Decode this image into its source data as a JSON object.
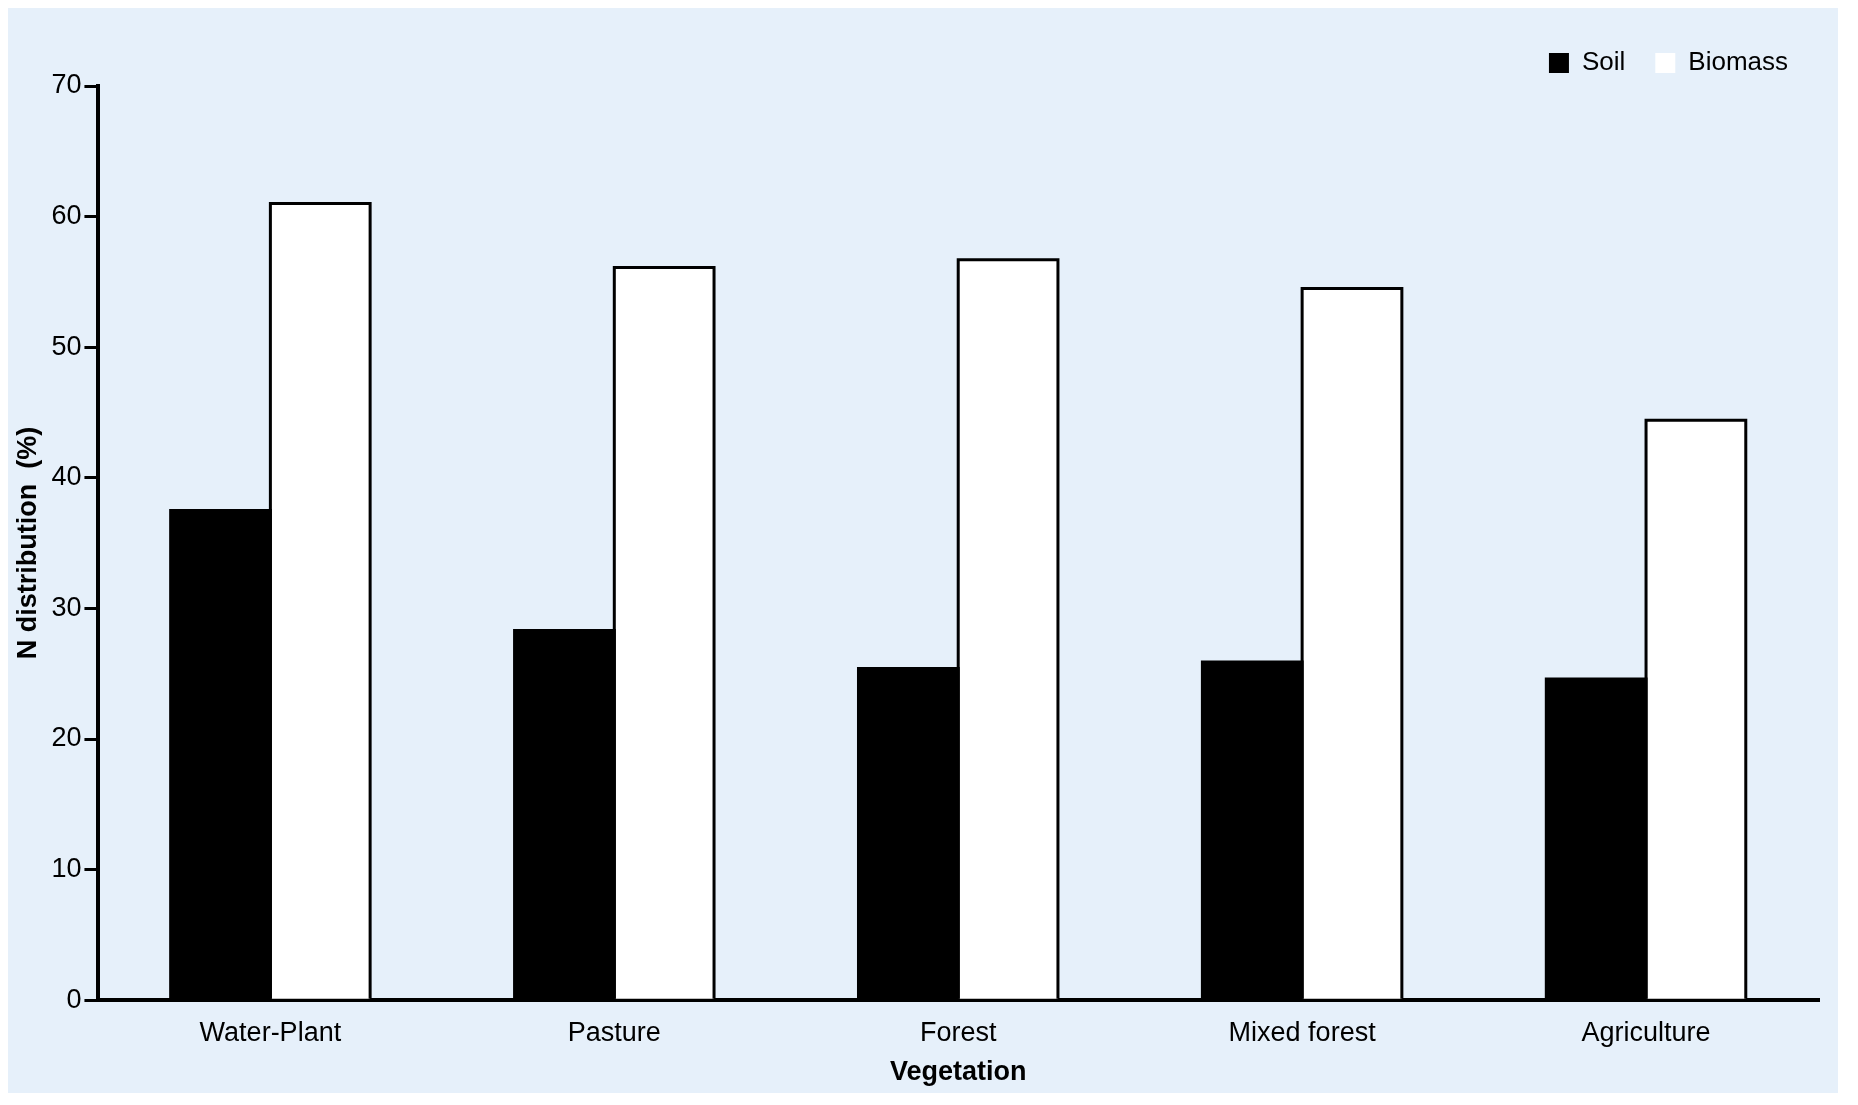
{
  "chart_data": {
    "type": "bar",
    "xlabel": "Vegetation",
    "ylabel": "N distribution  (%)",
    "categories": [
      "Water-Plant",
      "Pasture",
      "Forest",
      "Mixed forest",
      "Agriculture"
    ],
    "series": [
      {
        "name": "Soil",
        "color": "#000000",
        "values": [
          37.5,
          28.3,
          25.4,
          25.9,
          24.6
        ]
      },
      {
        "name": "Biomass",
        "color": "#ffffff",
        "values": [
          61.0,
          56.1,
          56.7,
          54.5,
          44.4
        ]
      }
    ],
    "ylim": [
      0,
      70
    ],
    "yticks": [
      0,
      10,
      20,
      30,
      40,
      50,
      60,
      70
    ],
    "grid": false,
    "legend": "top right"
  }
}
